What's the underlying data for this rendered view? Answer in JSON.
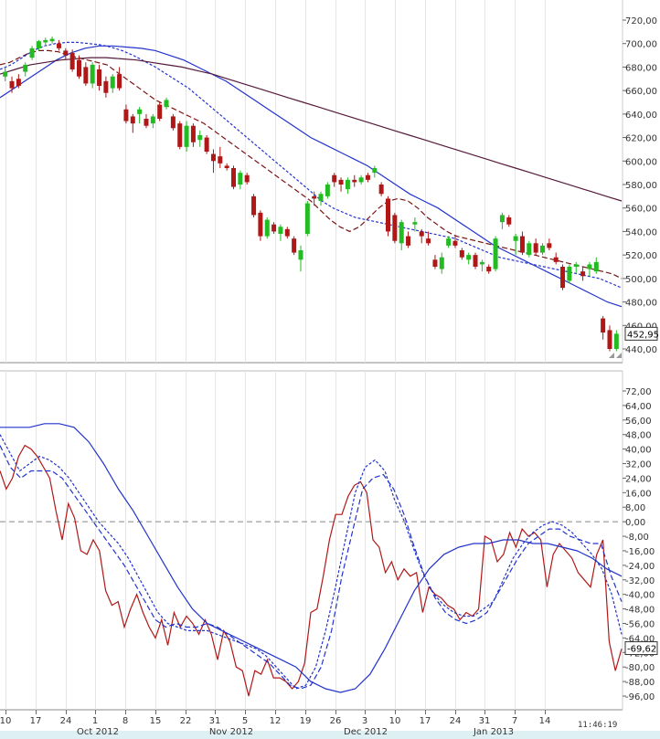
{
  "chart_data": [
    {
      "type": "candlestick",
      "name": "",
      "ylim": [
        440,
        720
      ],
      "yticks": [
        "720,00",
        "700,00",
        "680,00",
        "660,00",
        "640,00",
        "620,00",
        "600,00",
        "580,00",
        "560,00",
        "540,00",
        "520,00",
        "500,00",
        "480,00",
        "460,00",
        "440,00"
      ],
      "last_value_label": "452,95",
      "up_color": "#22bb22",
      "down_color": "#b01818",
      "candles": [
        {
          "o": 672,
          "h": 680,
          "l": 668,
          "c": 676
        },
        {
          "o": 668,
          "h": 672,
          "l": 658,
          "c": 662
        },
        {
          "o": 670,
          "h": 674,
          "l": 662,
          "c": 664
        },
        {
          "o": 676,
          "h": 684,
          "l": 672,
          "c": 682
        },
        {
          "o": 688,
          "h": 698,
          "l": 686,
          "c": 696
        },
        {
          "o": 696,
          "h": 703,
          "l": 694,
          "c": 702
        },
        {
          "o": 701,
          "h": 705,
          "l": 698,
          "c": 703
        },
        {
          "o": 702,
          "h": 706,
          "l": 700,
          "c": 704
        },
        {
          "o": 700,
          "h": 703,
          "l": 694,
          "c": 696
        },
        {
          "o": 694,
          "h": 696,
          "l": 686,
          "c": 690
        },
        {
          "o": 692,
          "h": 695,
          "l": 676,
          "c": 678
        },
        {
          "o": 686,
          "h": 690,
          "l": 670,
          "c": 672
        },
        {
          "o": 680,
          "h": 684,
          "l": 664,
          "c": 666
        },
        {
          "o": 666,
          "h": 684,
          "l": 662,
          "c": 682
        },
        {
          "o": 678,
          "h": 682,
          "l": 660,
          "c": 664
        },
        {
          "o": 668,
          "h": 672,
          "l": 654,
          "c": 658
        },
        {
          "o": 662,
          "h": 674,
          "l": 658,
          "c": 672
        },
        {
          "o": 674,
          "h": 680,
          "l": 660,
          "c": 662
        },
        {
          "o": 644,
          "h": 648,
          "l": 632,
          "c": 634
        },
        {
          "o": 638,
          "h": 640,
          "l": 624,
          "c": 632
        },
        {
          "o": 640,
          "h": 646,
          "l": 632,
          "c": 644
        },
        {
          "o": 636,
          "h": 640,
          "l": 628,
          "c": 630
        },
        {
          "o": 632,
          "h": 640,
          "l": 628,
          "c": 638
        },
        {
          "o": 648,
          "h": 650,
          "l": 634,
          "c": 636
        },
        {
          "o": 646,
          "h": 654,
          "l": 644,
          "c": 652
        },
        {
          "o": 638,
          "h": 640,
          "l": 626,
          "c": 628
        },
        {
          "o": 632,
          "h": 634,
          "l": 610,
          "c": 612
        },
        {
          "o": 612,
          "h": 634,
          "l": 608,
          "c": 630
        },
        {
          "o": 630,
          "h": 632,
          "l": 612,
          "c": 616
        },
        {
          "o": 618,
          "h": 626,
          "l": 612,
          "c": 622
        },
        {
          "o": 620,
          "h": 622,
          "l": 606,
          "c": 608
        },
        {
          "o": 606,
          "h": 610,
          "l": 590,
          "c": 600
        },
        {
          "o": 604,
          "h": 612,
          "l": 594,
          "c": 598
        },
        {
          "o": 596,
          "h": 598,
          "l": 592,
          "c": 594
        },
        {
          "o": 594,
          "h": 596,
          "l": 576,
          "c": 578
        },
        {
          "o": 580,
          "h": 592,
          "l": 576,
          "c": 590
        },
        {
          "o": 588,
          "h": 590,
          "l": 580,
          "c": 582
        },
        {
          "o": 570,
          "h": 572,
          "l": 552,
          "c": 554
        },
        {
          "o": 556,
          "h": 558,
          "l": 532,
          "c": 536
        },
        {
          "o": 536,
          "h": 552,
          "l": 534,
          "c": 550
        },
        {
          "o": 546,
          "h": 548,
          "l": 538,
          "c": 540
        },
        {
          "o": 538,
          "h": 546,
          "l": 532,
          "c": 544
        },
        {
          "o": 542,
          "h": 544,
          "l": 534,
          "c": 536
        },
        {
          "o": 534,
          "h": 536,
          "l": 520,
          "c": 522
        },
        {
          "o": 516,
          "h": 528,
          "l": 506,
          "c": 524
        },
        {
          "o": 538,
          "h": 566,
          "l": 536,
          "c": 564
        },
        {
          "o": 570,
          "h": 574,
          "l": 562,
          "c": 568
        },
        {
          "o": 566,
          "h": 574,
          "l": 562,
          "c": 572
        },
        {
          "o": 570,
          "h": 582,
          "l": 568,
          "c": 580
        },
        {
          "o": 588,
          "h": 590,
          "l": 578,
          "c": 582
        },
        {
          "o": 584,
          "h": 586,
          "l": 574,
          "c": 580
        },
        {
          "o": 576,
          "h": 586,
          "l": 572,
          "c": 584
        },
        {
          "o": 584,
          "h": 588,
          "l": 578,
          "c": 582
        },
        {
          "o": 582,
          "h": 588,
          "l": 580,
          "c": 586
        },
        {
          "o": 588,
          "h": 590,
          "l": 582,
          "c": 584
        },
        {
          "o": 590,
          "h": 596,
          "l": 586,
          "c": 594
        },
        {
          "o": 580,
          "h": 582,
          "l": 570,
          "c": 572
        },
        {
          "o": 568,
          "h": 570,
          "l": 536,
          "c": 540
        },
        {
          "o": 554,
          "h": 556,
          "l": 530,
          "c": 532
        },
        {
          "o": 530,
          "h": 550,
          "l": 524,
          "c": 548
        },
        {
          "o": 536,
          "h": 540,
          "l": 526,
          "c": 528
        },
        {
          "o": 546,
          "h": 552,
          "l": 540,
          "c": 548
        },
        {
          "o": 540,
          "h": 542,
          "l": 530,
          "c": 536
        },
        {
          "o": 534,
          "h": 540,
          "l": 528,
          "c": 530
        },
        {
          "o": 516,
          "h": 520,
          "l": 508,
          "c": 510
        },
        {
          "o": 508,
          "h": 522,
          "l": 504,
          "c": 518
        },
        {
          "o": 528,
          "h": 536,
          "l": 526,
          "c": 534
        },
        {
          "o": 532,
          "h": 536,
          "l": 526,
          "c": 528
        },
        {
          "o": 524,
          "h": 526,
          "l": 516,
          "c": 518
        },
        {
          "o": 516,
          "h": 522,
          "l": 512,
          "c": 520
        },
        {
          "o": 520,
          "h": 522,
          "l": 508,
          "c": 510
        },
        {
          "o": 512,
          "h": 516,
          "l": 506,
          "c": 514
        },
        {
          "o": 510,
          "h": 512,
          "l": 504,
          "c": 506
        },
        {
          "o": 508,
          "h": 536,
          "l": 506,
          "c": 534
        },
        {
          "o": 548,
          "h": 556,
          "l": 542,
          "c": 554
        },
        {
          "o": 552,
          "h": 554,
          "l": 544,
          "c": 546
        },
        {
          "o": 532,
          "h": 538,
          "l": 520,
          "c": 536
        },
        {
          "o": 536,
          "h": 540,
          "l": 520,
          "c": 522
        },
        {
          "o": 520,
          "h": 532,
          "l": 518,
          "c": 530
        },
        {
          "o": 530,
          "h": 534,
          "l": 520,
          "c": 522
        },
        {
          "o": 522,
          "h": 530,
          "l": 520,
          "c": 528
        },
        {
          "o": 530,
          "h": 534,
          "l": 524,
          "c": 526
        },
        {
          "o": 518,
          "h": 522,
          "l": 512,
          "c": 514
        },
        {
          "o": 510,
          "h": 512,
          "l": 490,
          "c": 492
        },
        {
          "o": 498,
          "h": 512,
          "l": 496,
          "c": 510
        },
        {
          "o": 510,
          "h": 514,
          "l": 504,
          "c": 512
        },
        {
          "o": 506,
          "h": 510,
          "l": 498,
          "c": 502
        },
        {
          "o": 508,
          "h": 514,
          "l": 502,
          "c": 512
        },
        {
          "o": 506,
          "h": 518,
          "l": 504,
          "c": 514
        },
        {
          "o": 466,
          "h": 468,
          "l": 448,
          "c": 454
        },
        {
          "o": 456,
          "h": 460,
          "l": 438,
          "c": 440
        },
        {
          "o": 440,
          "h": 456,
          "l": 438,
          "c": 452.95
        }
      ],
      "series": [
        {
          "style": "dashed",
          "color": "#7a1414",
          "values": [
            682,
            684,
            688,
            692,
            694,
            694,
            693,
            690,
            688,
            686,
            684,
            682,
            676,
            670,
            664,
            658,
            652,
            648,
            644,
            640,
            636,
            632,
            626,
            620,
            614,
            608,
            602,
            596,
            590,
            584,
            578,
            572,
            566,
            558,
            550,
            544,
            540,
            544,
            552,
            560,
            566,
            568,
            566,
            560,
            552,
            546,
            540,
            536,
            534,
            532,
            530,
            528,
            526,
            524,
            522,
            520,
            518,
            516,
            514,
            512,
            510,
            508,
            506,
            504,
            500
          ]
        },
        {
          "style": "dotted",
          "color": "#2233cc",
          "values": [
            678,
            682,
            688,
            694,
            698,
            700,
            701,
            701,
            700,
            699,
            697,
            694,
            690,
            685,
            680,
            674,
            668,
            662,
            654,
            646,
            638,
            630,
            622,
            614,
            606,
            598,
            590,
            582,
            574,
            566,
            560,
            556,
            552,
            550,
            548,
            546,
            544,
            542,
            540,
            538,
            536,
            534,
            530,
            526,
            522,
            518,
            516,
            514,
            512,
            510,
            508,
            506,
            504,
            502,
            500,
            496,
            492
          ]
        },
        {
          "style": "solid",
          "color": "#2233cc",
          "values": [
            654,
            662,
            670,
            678,
            686,
            692,
            696,
            698,
            698,
            697,
            696,
            694,
            690,
            686,
            680,
            674,
            668,
            660,
            652,
            644,
            636,
            628,
            620,
            614,
            608,
            602,
            596,
            588,
            580,
            572,
            566,
            560,
            552,
            544,
            536,
            528,
            522,
            516,
            510,
            504,
            498,
            492,
            486,
            480,
            476
          ]
        },
        {
          "style": "solid",
          "color": "#551a3a",
          "values": [
            674,
            678,
            682,
            684,
            686,
            687,
            688,
            688,
            687,
            686,
            684,
            682,
            680,
            677,
            674,
            670,
            666,
            662,
            658,
            654,
            650,
            646,
            642,
            638,
            634,
            630,
            626,
            622,
            618,
            614,
            610,
            606,
            602,
            598,
            594,
            590,
            586,
            582,
            578,
            574,
            570,
            566
          ]
        }
      ]
    },
    {
      "type": "line",
      "name": "",
      "ylim": [
        -96,
        72
      ],
      "yticks": [
        "72,00",
        "64,00",
        "56,00",
        "48,00",
        "40,00",
        "32,00",
        "24,00",
        "16,00",
        "8,00",
        "0,00",
        "-8,00",
        "-16,00",
        "-24,00",
        "-32,00",
        "-40,00",
        "-48,00",
        "-56,00",
        "-64,00",
        "-72,00",
        "-80,00",
        "-88,00",
        "-96,00"
      ],
      "reference_line": 0,
      "last_value_label": "-69,62",
      "series": [
        {
          "style": "solid",
          "color": "#b01818",
          "values": [
            28,
            18,
            24,
            36,
            42,
            40,
            36,
            30,
            24,
            6,
            -10,
            10,
            2,
            -16,
            -18,
            -10,
            -16,
            -38,
            -46,
            -44,
            -58,
            -48,
            -40,
            -50,
            -58,
            -64,
            -54,
            -68,
            -50,
            -58,
            -52,
            -56,
            -62,
            -54,
            -62,
            -76,
            -60,
            -66,
            -80,
            -82,
            -96,
            -82,
            -84,
            -76,
            -86,
            -86,
            -88,
            -92,
            -88,
            -78,
            -50,
            -48,
            -30,
            -10,
            4,
            4,
            14,
            20,
            22,
            16,
            -10,
            -14,
            -28,
            -22,
            -32,
            -26,
            -30,
            -28,
            -50,
            -36,
            -40,
            -42,
            -46,
            -48,
            -54,
            -50,
            -52,
            -48,
            -8,
            -10,
            -22,
            -18,
            -6,
            -14,
            -4,
            -8,
            -6,
            -10,
            -36,
            -18,
            -12,
            -16,
            -20,
            -28,
            -32,
            -36,
            -18,
            -10,
            -66,
            -82,
            -70
          ]
        },
        {
          "style": "dotted",
          "color": "#2233cc",
          "values": [
            48,
            38,
            28,
            32,
            36,
            34,
            30,
            24,
            16,
            8,
            0,
            -6,
            -12,
            -20,
            -30,
            -40,
            -50,
            -56,
            -58,
            -60,
            -60,
            -60,
            -62,
            -64,
            -66,
            -68,
            -70,
            -74,
            -80,
            -86,
            -92,
            -90,
            -80,
            -60,
            -36,
            -10,
            16,
            30,
            34,
            28,
            12,
            0,
            -16,
            -30,
            -40,
            -46,
            -50,
            -52,
            -52,
            -48,
            -44,
            -32,
            -20,
            -12,
            -6,
            -2,
            0,
            -2,
            -6,
            -12,
            -18,
            -26,
            -40,
            -62
          ]
        },
        {
          "style": "dashed",
          "color": "#2233cc",
          "values": [
            42,
            30,
            24,
            28,
            28,
            28,
            24,
            16,
            8,
            0,
            -8,
            -16,
            -24,
            -34,
            -44,
            -54,
            -58,
            -56,
            -58,
            -58,
            -56,
            -58,
            -62,
            -66,
            -70,
            -74,
            -78,
            -84,
            -90,
            -92,
            -90,
            -80,
            -60,
            -30,
            -6,
            18,
            24,
            26,
            18,
            4,
            -14,
            -30,
            -42,
            -50,
            -54,
            -56,
            -54,
            -50,
            -40,
            -30,
            -20,
            -12,
            -8,
            -4,
            -4,
            -8,
            -10,
            -12,
            -12,
            -30,
            -44
          ]
        },
        {
          "style": "solid",
          "color": "#2233cc",
          "values": [
            52,
            52,
            52,
            54,
            54,
            52,
            44,
            32,
            18,
            6,
            -8,
            -22,
            -36,
            -48,
            -56,
            -60,
            -64,
            -68,
            -72,
            -76,
            -80,
            -88,
            -92,
            -94,
            -92,
            -84,
            -70,
            -54,
            -38,
            -26,
            -18,
            -14,
            -12,
            -12,
            -10,
            -10,
            -12,
            -12,
            -14,
            -16,
            -20,
            -26,
            -30
          ]
        }
      ]
    }
  ],
  "x_axis": {
    "day_ticks": [
      "10",
      "17",
      "24",
      "1",
      "8",
      "15",
      "22",
      "31",
      "5",
      "12",
      "19",
      "26",
      "3",
      "10",
      "17",
      "24",
      "31",
      "7",
      "14"
    ],
    "month_labels": [
      "Oct 2012",
      "Nov 2012",
      "Dec 2012",
      "Jan 2013"
    ]
  },
  "clock": "11:46:19"
}
